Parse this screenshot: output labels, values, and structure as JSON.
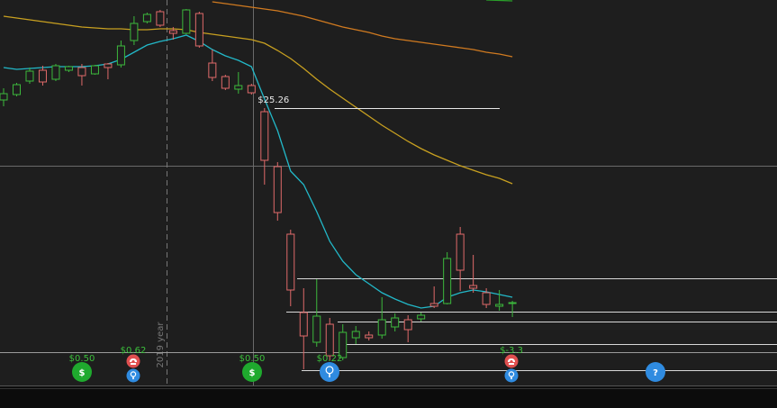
{
  "chart_data": {
    "type": "candlestick",
    "categories": [
      null,
      null,
      null,
      null,
      null,
      null,
      null,
      null,
      null,
      null,
      null,
      null,
      null,
      null,
      null,
      null,
      null,
      null,
      null,
      null,
      null,
      null,
      null,
      null,
      null,
      null,
      null,
      null,
      null,
      null,
      null,
      null,
      null,
      null,
      null,
      null,
      null,
      null,
      null,
      null
    ],
    "open": [
      28.08,
      28.2,
      28.5,
      28.74,
      28.54,
      28.74,
      28.8,
      28.66,
      28.88,
      28.86,
      29.4,
      29.82,
      30.04,
      29.62,
      29.56,
      30.0,
      28.9,
      28.6,
      28.32,
      28.4,
      27.82,
      26.6,
      25.1,
      23.36,
      22.7,
      23.1,
      22.36,
      22.8,
      22.86,
      22.86,
      23.04,
      23.2,
      23.22,
      23.56,
      23.56,
      25.1,
      23.96,
      23.8,
      23.5,
      23.58
    ],
    "high": [
      28.34,
      28.46,
      28.8,
      28.84,
      28.88,
      28.84,
      28.88,
      28.86,
      28.9,
      29.4,
      29.94,
      30.02,
      30.08,
      29.7,
      30.1,
      30.04,
      29.2,
      28.64,
      28.7,
      28.44,
      27.9,
      26.7,
      25.2,
      23.9,
      24.1,
      23.24,
      23.1,
      23.06,
      22.94,
      23.7,
      23.34,
      23.3,
      23.36,
      23.94,
      24.7,
      25.26,
      24.64,
      23.9,
      23.86,
      23.62
    ],
    "low": [
      27.94,
      28.16,
      28.44,
      28.4,
      28.5,
      28.7,
      28.4,
      28.64,
      28.54,
      28.8,
      29.3,
      29.78,
      29.7,
      29.42,
      29.54,
      29.24,
      28.5,
      28.3,
      28.22,
      28.2,
      26.2,
      25.4,
      23.5,
      22.1,
      22.6,
      22.3,
      22.3,
      22.66,
      22.74,
      22.78,
      22.94,
      22.7,
      23.16,
      23.46,
      23.54,
      23.84,
      23.8,
      23.46,
      23.4,
      23.26
    ],
    "close": [
      28.22,
      28.42,
      28.72,
      28.48,
      28.84,
      28.82,
      28.62,
      28.84,
      28.8,
      29.28,
      29.78,
      29.98,
      29.74,
      29.56,
      30.08,
      29.28,
      28.58,
      28.34,
      28.4,
      28.24,
      26.74,
      25.58,
      23.86,
      22.84,
      23.28,
      22.4,
      22.92,
      22.94,
      22.8,
      23.2,
      23.24,
      22.98,
      23.3,
      23.5,
      24.56,
      24.3,
      23.9,
      23.54,
      23.54,
      23.58
    ],
    "up_color": "#3cb93c",
    "down_color": "#e06a6a",
    "ylim": [
      21.24,
      30.3
    ],
    "moving_averages": [
      {
        "color": "#22b8c8",
        "values": [
          28.8,
          28.76,
          28.78,
          28.8,
          28.82,
          28.82,
          28.82,
          28.84,
          28.88,
          28.98,
          29.14,
          29.3,
          29.38,
          29.44,
          29.52,
          29.38,
          29.2,
          29.06,
          28.96,
          28.82,
          28.1,
          27.4,
          26.5,
          26.2,
          25.6,
          24.94,
          24.5,
          24.2,
          24.0,
          23.8,
          23.66,
          23.54,
          23.46,
          23.5,
          23.7,
          23.8,
          23.86,
          23.82,
          23.76,
          23.7
        ]
      },
      {
        "color": "#c8a020",
        "values": [
          29.94,
          29.9,
          29.86,
          29.82,
          29.78,
          29.74,
          29.7,
          29.68,
          29.66,
          29.66,
          29.64,
          29.64,
          29.66,
          29.66,
          29.64,
          29.58,
          29.54,
          29.5,
          29.46,
          29.42,
          29.34,
          29.18,
          29.0,
          28.78,
          28.54,
          28.32,
          28.12,
          27.92,
          27.72,
          27.52,
          27.34,
          27.16,
          27.0,
          26.86,
          26.74,
          26.62,
          26.52,
          26.42,
          26.34,
          26.22
        ]
      },
      {
        "color": "#d07a20",
        "values": [
          null,
          null,
          null,
          null,
          null,
          null,
          null,
          null,
          null,
          null,
          null,
          null,
          null,
          null,
          null,
          null,
          30.26,
          30.22,
          30.18,
          30.14,
          30.1,
          30.06,
          30.0,
          29.94,
          29.86,
          29.78,
          29.7,
          29.64,
          29.58,
          29.5,
          29.44,
          29.4,
          29.36,
          29.32,
          29.28,
          29.24,
          29.2,
          29.14,
          29.1,
          29.04
        ]
      },
      {
        "color": "#2aa02a",
        "values": [
          null,
          null,
          null,
          null,
          null,
          null,
          null,
          null,
          null,
          null,
          null,
          null,
          null,
          null,
          null,
          null,
          null,
          null,
          null,
          null,
          null,
          null,
          null,
          null,
          null,
          null,
          null,
          null,
          null,
          null,
          null,
          null,
          null,
          null,
          null,
          null,
          null,
          30.3,
          30.29,
          30.28
        ]
      }
    ],
    "high_label": "$25.26",
    "period_label": "2019 year"
  },
  "events": [
    {
      "kind": "dividend",
      "label": "$0.50",
      "symbol": "$"
    },
    {
      "kind": "earnings",
      "label": "$0.62"
    },
    {
      "kind": "dividend",
      "label": "$0.50",
      "symbol": "$"
    },
    {
      "kind": "idea",
      "label": "$0.22"
    },
    {
      "kind": "earnings",
      "label": "$-3.3"
    },
    {
      "kind": "help",
      "label": "?"
    }
  ]
}
